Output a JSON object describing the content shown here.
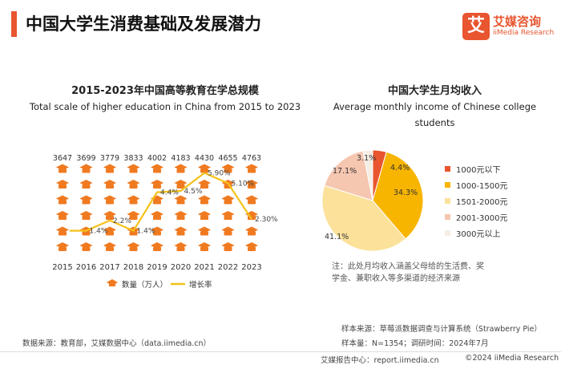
{
  "page": {
    "title": "中国大学生消费基础及发展潜力"
  },
  "logo": {
    "cn": "艾媒咨询",
    "en": "iiMedia Research",
    "mark": "艾"
  },
  "left_chart": {
    "title_cn": "2015-2023年中国高等教育在学总规模",
    "title_en": "Total scale of higher education in China from 2015 to 2023",
    "source": "数据来源：教育部，艾媒数据中心（data.iimedia.cn）"
  },
  "right_chart": {
    "title_cn": "中国大学生月均收入",
    "title_en_line1": "Average monthly income of Chinese college",
    "title_en_line2": "students",
    "note_line1": "注：此处月均收入涵盖父母给的生活费、奖",
    "note_line2": "学金、兼职收入等多渠道的经济来源",
    "sample_source": "样本来源：草莓派数据调查与计算系统（Strawberry Pie）",
    "sample_size": "样本量：N=1354；调研时间：2024年7月"
  },
  "footer": {
    "text": "艾媒报告中心：report.iimedia.cn",
    "copyright": "©2024  iiMedia Research  Inc"
  },
  "chart_data": [
    {
      "type": "bar",
      "categories": [
        "2015",
        "2016",
        "2017",
        "2018",
        "2019",
        "2020",
        "2021",
        "2022",
        "2023"
      ],
      "series": [
        {
          "name": "数量（万人）",
          "values": [
            3647,
            3699,
            3779,
            3833,
            4002,
            4183,
            4430,
            4655,
            4763
          ],
          "color": "#f07a20"
        },
        {
          "name": "增长率",
          "type": "line",
          "values": [
            null,
            1.4,
            2.2,
            1.4,
            4.4,
            4.5,
            5.9,
            5.1,
            2.3
          ],
          "labels": [
            "",
            "1.4%",
            "2.2%",
            "1.4%",
            "4.4%",
            "4.5%",
            "5.90%",
            "5.10%",
            "2.30%"
          ],
          "color": "#f4c21a"
        }
      ],
      "legend": "bottom"
    },
    {
      "type": "pie",
      "slices": [
        {
          "label": "1000元以下",
          "value": 4.4,
          "text": "4.4%",
          "color": "#e8552f"
        },
        {
          "label": "1000-1500元",
          "value": 34.3,
          "text": "34.3%",
          "color": "#f7b500"
        },
        {
          "label": "1501-2000元",
          "value": 41.1,
          "text": "41.1%",
          "color": "#fbe19a"
        },
        {
          "label": "2001-3000元",
          "value": 17.1,
          "text": "17.1%",
          "color": "#f5c6b0"
        },
        {
          "label": "3000元以上",
          "value": 3.1,
          "text": "3.1%",
          "color": "#f5eee5"
        }
      ],
      "legend": "right"
    }
  ]
}
